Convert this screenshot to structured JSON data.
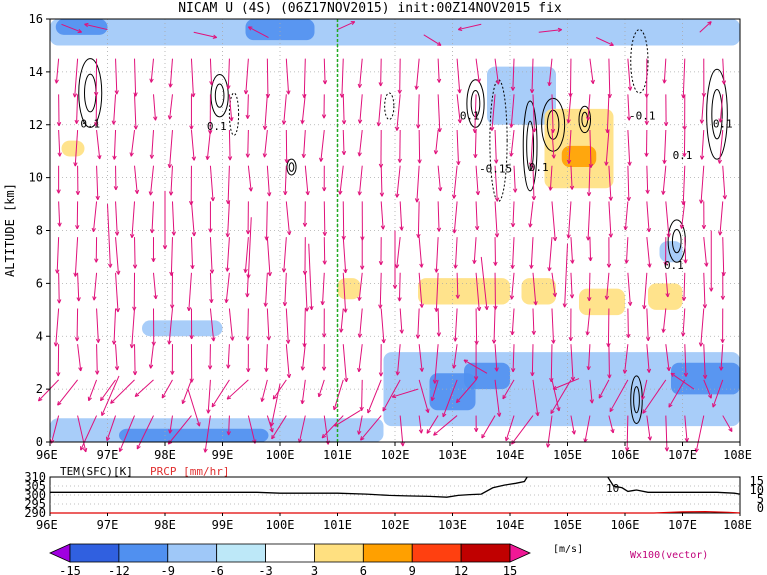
{
  "chart_data": [
    {
      "type": "heatmap",
      "title": "NICAM U (4S) (06Z17NOV2015) init:00Z14NOV2015 fix",
      "ylabel": "ALTITUDE [km]",
      "xlim": [
        96,
        108
      ],
      "ylim": [
        0,
        16
      ],
      "x_ticks": [
        "96E",
        "97E",
        "98E",
        "99E",
        "100E",
        "101E",
        "102E",
        "103E",
        "104E",
        "105E",
        "106E",
        "107E",
        "108E"
      ],
      "y_ticks": [
        "0",
        "2",
        "4",
        "6",
        "8",
        "10",
        "12",
        "14",
        "16"
      ],
      "grid": true,
      "vertical_marker": {
        "x": 101.0,
        "color": "#22aa22"
      },
      "contour_labels": [
        {
          "x": 96.7,
          "y": 11.9,
          "text": "0.1"
        },
        {
          "x": 98.9,
          "y": 11.8,
          "text": "0.1"
        },
        {
          "x": 103.3,
          "y": 12.2,
          "text": "0.1"
        },
        {
          "x": 103.75,
          "y": 10.2,
          "text": "-0.15"
        },
        {
          "x": 104.5,
          "y": 10.25,
          "text": "0.1"
        },
        {
          "x": 106.3,
          "y": 12.2,
          "text": "-0.1"
        },
        {
          "x": 107.0,
          "y": 10.7,
          "text": "0.1"
        },
        {
          "x": 107.7,
          "y": 11.9,
          "text": "0.1"
        },
        {
          "x": 106.85,
          "y": 6.55,
          "text": "0.1"
        }
      ],
      "shaded_regions": [
        {
          "x0": 96.0,
          "x1": 101.8,
          "y0": 0.0,
          "y1": 0.9,
          "value": -6
        },
        {
          "x0": 97.2,
          "x1": 99.8,
          "y0": 0.0,
          "y1": 0.5,
          "value": -9
        },
        {
          "x0": 101.8,
          "x1": 108.0,
          "y0": 0.6,
          "y1": 3.4,
          "value": -6
        },
        {
          "x0": 102.6,
          "x1": 103.4,
          "y0": 1.2,
          "y1": 2.6,
          "value": -9
        },
        {
          "x0": 103.2,
          "x1": 104.0,
          "y0": 2.0,
          "y1": 3.0,
          "value": -9
        },
        {
          "x0": 106.8,
          "x1": 108.0,
          "y0": 1.8,
          "y1": 3.0,
          "value": -9
        },
        {
          "x0": 96.0,
          "x1": 108.0,
          "y0": 15.0,
          "y1": 16.0,
          "value": -6
        },
        {
          "x0": 96.1,
          "x1": 97.0,
          "y0": 15.4,
          "y1": 16.0,
          "value": -9
        },
        {
          "x0": 99.4,
          "x1": 100.6,
          "y0": 15.2,
          "y1": 16.0,
          "value": -9
        },
        {
          "x0": 103.6,
          "x1": 104.8,
          "y0": 12.0,
          "y1": 14.2,
          "value": -6
        },
        {
          "x0": 104.6,
          "x1": 105.8,
          "y0": 9.6,
          "y1": 12.6,
          "value": 6
        },
        {
          "x0": 104.9,
          "x1": 105.5,
          "y0": 10.4,
          "y1": 11.2,
          "value": 9
        },
        {
          "x0": 97.6,
          "x1": 99.0,
          "y0": 4.0,
          "y1": 4.6,
          "value": -6
        },
        {
          "x0": 102.4,
          "x1": 104.0,
          "y0": 5.2,
          "y1": 6.2,
          "value": 6
        },
        {
          "x0": 104.2,
          "x1": 104.8,
          "y0": 5.2,
          "y1": 6.2,
          "value": 6
        },
        {
          "x0": 105.2,
          "x1": 106.0,
          "y0": 4.8,
          "y1": 5.8,
          "value": 6
        },
        {
          "x0": 106.4,
          "x1": 107.0,
          "y0": 5.0,
          "y1": 6.0,
          "value": 6
        },
        {
          "x0": 96.2,
          "x1": 96.6,
          "y0": 10.8,
          "y1": 11.4,
          "value": 6
        },
        {
          "x0": 101.0,
          "x1": 101.4,
          "y0": 5.4,
          "y1": 6.2,
          "value": 6
        },
        {
          "x0": 106.6,
          "x1": 107.0,
          "y0": 6.8,
          "y1": 7.6,
          "value": -6
        }
      ],
      "solid_contours": [
        {
          "cx": 96.7,
          "cy": 13.2,
          "rx": 0.2,
          "ry": 1.3
        },
        {
          "cx": 98.95,
          "cy": 13.1,
          "rx": 0.15,
          "ry": 0.8
        },
        {
          "cx": 103.4,
          "cy": 12.8,
          "rx": 0.15,
          "ry": 0.9
        },
        {
          "cx": 104.35,
          "cy": 11.2,
          "rx": 0.12,
          "ry": 1.7
        },
        {
          "cx": 104.75,
          "cy": 12.0,
          "rx": 0.2,
          "ry": 1.0
        },
        {
          "cx": 105.3,
          "cy": 12.2,
          "rx": 0.1,
          "ry": 0.5
        },
        {
          "cx": 107.6,
          "cy": 12.4,
          "rx": 0.18,
          "ry": 1.7
        },
        {
          "cx": 106.9,
          "cy": 7.6,
          "rx": 0.15,
          "ry": 0.8
        },
        {
          "cx": 106.2,
          "cy": 1.6,
          "rx": 0.1,
          "ry": 0.9
        },
        {
          "cx": 100.2,
          "cy": 10.4,
          "rx": 0.08,
          "ry": 0.3
        }
      ],
      "dashed_contours": [
        {
          "cx": 99.2,
          "cy": 12.4,
          "rx": 0.08,
          "ry": 0.8
        },
        {
          "cx": 101.9,
          "cy": 12.7,
          "rx": 0.08,
          "ry": 0.5
        },
        {
          "cx": 103.8,
          "cy": 11.4,
          "rx": 0.15,
          "ry": 2.3
        },
        {
          "cx": 106.25,
          "cy": 14.4,
          "rx": 0.15,
          "ry": 1.2
        }
      ],
      "wind_barbs": [
        {
          "x": 96.2,
          "y": 15.8,
          "dx": 0.35,
          "dy": -0.3
        },
        {
          "x": 97.0,
          "y": 15.6,
          "dx": -0.4,
          "dy": 0.2
        },
        {
          "x": 98.5,
          "y": 15.5,
          "dx": 0.4,
          "dy": -0.2
        },
        {
          "x": 99.8,
          "y": 15.3,
          "dx": -0.35,
          "dy": 0.4
        },
        {
          "x": 101.0,
          "y": 15.6,
          "dx": 0.3,
          "dy": 0.3
        },
        {
          "x": 102.5,
          "y": 15.4,
          "dx": 0.3,
          "dy": -0.4
        },
        {
          "x": 103.5,
          "y": 15.8,
          "dx": -0.4,
          "dy": -0.2
        },
        {
          "x": 104.5,
          "y": 15.5,
          "dx": 0.4,
          "dy": 0.1
        },
        {
          "x": 105.5,
          "y": 15.3,
          "dx": 0.3,
          "dy": -0.3
        },
        {
          "x": 107.3,
          "y": 15.5,
          "dx": 0.2,
          "dy": 0.4
        },
        {
          "x": 97.0,
          "y": 9.0,
          "dx": 0.05,
          "dy": -2.4
        },
        {
          "x": 98.0,
          "y": 9.5,
          "dx": 0.0,
          "dy": -2.2
        },
        {
          "x": 99.5,
          "y": 8.5,
          "dx": -0.05,
          "dy": -2.3
        },
        {
          "x": 100.5,
          "y": 7.5,
          "dx": 0.05,
          "dy": -2.5
        },
        {
          "x": 102.0,
          "y": 8.0,
          "dx": 0.0,
          "dy": -2.2
        },
        {
          "x": 103.5,
          "y": 7.0,
          "dx": 0.1,
          "dy": -2.0
        },
        {
          "x": 105.0,
          "y": 7.5,
          "dx": -0.05,
          "dy": -2.4
        },
        {
          "x": 107.5,
          "y": 8.0,
          "dx": 0.0,
          "dy": -2.3
        },
        {
          "x": 97.2,
          "y": 2.5,
          "dx": -0.3,
          "dy": -1.5
        },
        {
          "x": 98.4,
          "y": 2.0,
          "dx": 0.2,
          "dy": -1.4
        },
        {
          "x": 100.0,
          "y": 2.2,
          "dx": -0.15,
          "dy": -1.6
        },
        {
          "x": 101.4,
          "y": 1.2,
          "dx": -0.45,
          "dy": -0.6
        },
        {
          "x": 102.4,
          "y": 2.0,
          "dx": -0.45,
          "dy": -0.3
        },
        {
          "x": 103.6,
          "y": 2.6,
          "dx": -0.4,
          "dy": 0.5
        },
        {
          "x": 105.2,
          "y": 2.4,
          "dx": -0.45,
          "dy": -0.4
        },
        {
          "x": 107.2,
          "y": 2.0,
          "dx": -0.4,
          "dy": 0.6
        }
      ]
    },
    {
      "type": "line",
      "left_axis_label": "TEM(SFC)[K]",
      "right_axis_label": "PRCP [mm/hr]",
      "left_ticks": [
        "310",
        "305",
        "300",
        "295",
        "290"
      ],
      "right_ticks": [
        "15",
        "10",
        "5",
        "0"
      ],
      "x_ticks": [
        "96E",
        "97E",
        "98E",
        "99E",
        "100E",
        "101E",
        "102E",
        "103E",
        "104E",
        "105E",
        "106E",
        "107E",
        "108E"
      ],
      "xlim": [
        96,
        108
      ],
      "ylim": [
        290,
        310
      ],
      "annotation": "10",
      "series": [
        {
          "color": "#000000",
          "x": [
            96.0,
            97.0,
            98.0,
            99.0,
            99.6,
            100.0,
            100.6,
            101.0,
            101.5,
            101.9,
            102.2,
            102.6,
            102.9,
            103.1,
            103.3,
            103.5,
            103.7,
            103.9,
            104.1,
            104.25,
            104.3
          ],
          "y": [
            301.5,
            301.5,
            301.5,
            301.5,
            301.5,
            301.0,
            301.0,
            301.0,
            300.5,
            299.8,
            299.5,
            299.2,
            298.8,
            299.8,
            300.2,
            300.5,
            304.0,
            305.5,
            306.5,
            307.5,
            310.0
          ]
        },
        {
          "color": "#000000",
          "x": [
            105.7,
            105.8,
            105.95,
            106.05,
            106.2,
            106.4,
            106.8,
            107.2,
            107.6,
            107.9,
            108.0
          ],
          "y": [
            310.0,
            305.0,
            304.0,
            302.0,
            302.8,
            301.5,
            301.5,
            301.5,
            301.5,
            301.0,
            300.5
          ]
        },
        {
          "color": "#e00000",
          "x": [
            96.0,
            100.0,
            104.0,
            106.5,
            107.0,
            107.4,
            107.8,
            108.0
          ],
          "y": [
            290.0,
            290.0,
            290.0,
            290.0,
            290.6,
            290.8,
            290.4,
            290.0
          ]
        }
      ]
    }
  ],
  "colorbar": {
    "labels": [
      "-15",
      "-12",
      "-9",
      "-6",
      "-3",
      "3",
      "6",
      "9",
      "12",
      "15"
    ],
    "colors": [
      "#a000e0",
      "#3060e0",
      "#5090f0",
      "#9fc8f8",
      "#bde8f8",
      "#ffffff",
      "#ffe080",
      "#ffa000",
      "#ff4010",
      "#c00000",
      "#f01896"
    ],
    "unit": "[m/s]"
  },
  "vector_label": "Wx100(vector)",
  "colors": {
    "wind_vector": "#e0107a",
    "marker_line": "#22aa22",
    "grid": "#aaaaaa",
    "temp_line": "#000000",
    "prcp_line": "#e00000",
    "prcp_label": "#e03030",
    "vector_label": "#c0007a"
  }
}
